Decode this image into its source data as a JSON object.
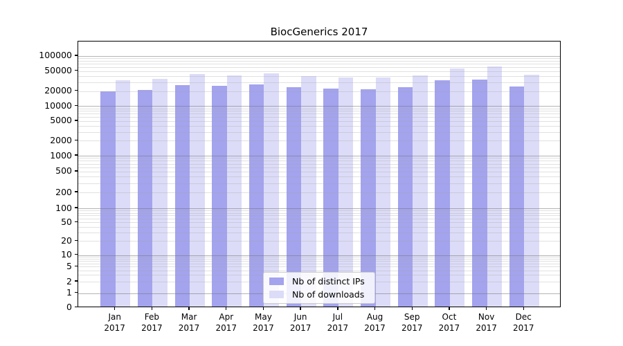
{
  "chart_data": {
    "type": "bar",
    "title": "BiocGenerics 2017",
    "categories": [
      "Jan",
      "Feb",
      "Mar",
      "Apr",
      "May",
      "Jun",
      "Jul",
      "Aug",
      "Sep",
      "Oct",
      "Nov",
      "Dec"
    ],
    "year": "2017",
    "series": [
      {
        "name": "Nb of distinct IPs",
        "color": "#a3a3ee",
        "values": [
          18300,
          19600,
          24700,
          23900,
          25600,
          22500,
          20800,
          20300,
          22200,
          31100,
          32100,
          23300
        ]
      },
      {
        "name": "Nb of downloads",
        "color": "#dcdcf8",
        "values": [
          30500,
          32300,
          40400,
          38000,
          41800,
          37500,
          35300,
          34600,
          38400,
          53300,
          57600,
          39700
        ]
      }
    ],
    "yscale": "symlog",
    "yticks": [
      0,
      1,
      2,
      5,
      10,
      20,
      50,
      100,
      200,
      500,
      1000,
      2000,
      5000,
      10000,
      20000,
      50000,
      100000
    ],
    "ylim": [
      0,
      200000
    ],
    "xlabel": "",
    "ylabel": "",
    "grid": true,
    "legend_position": "lower center"
  }
}
